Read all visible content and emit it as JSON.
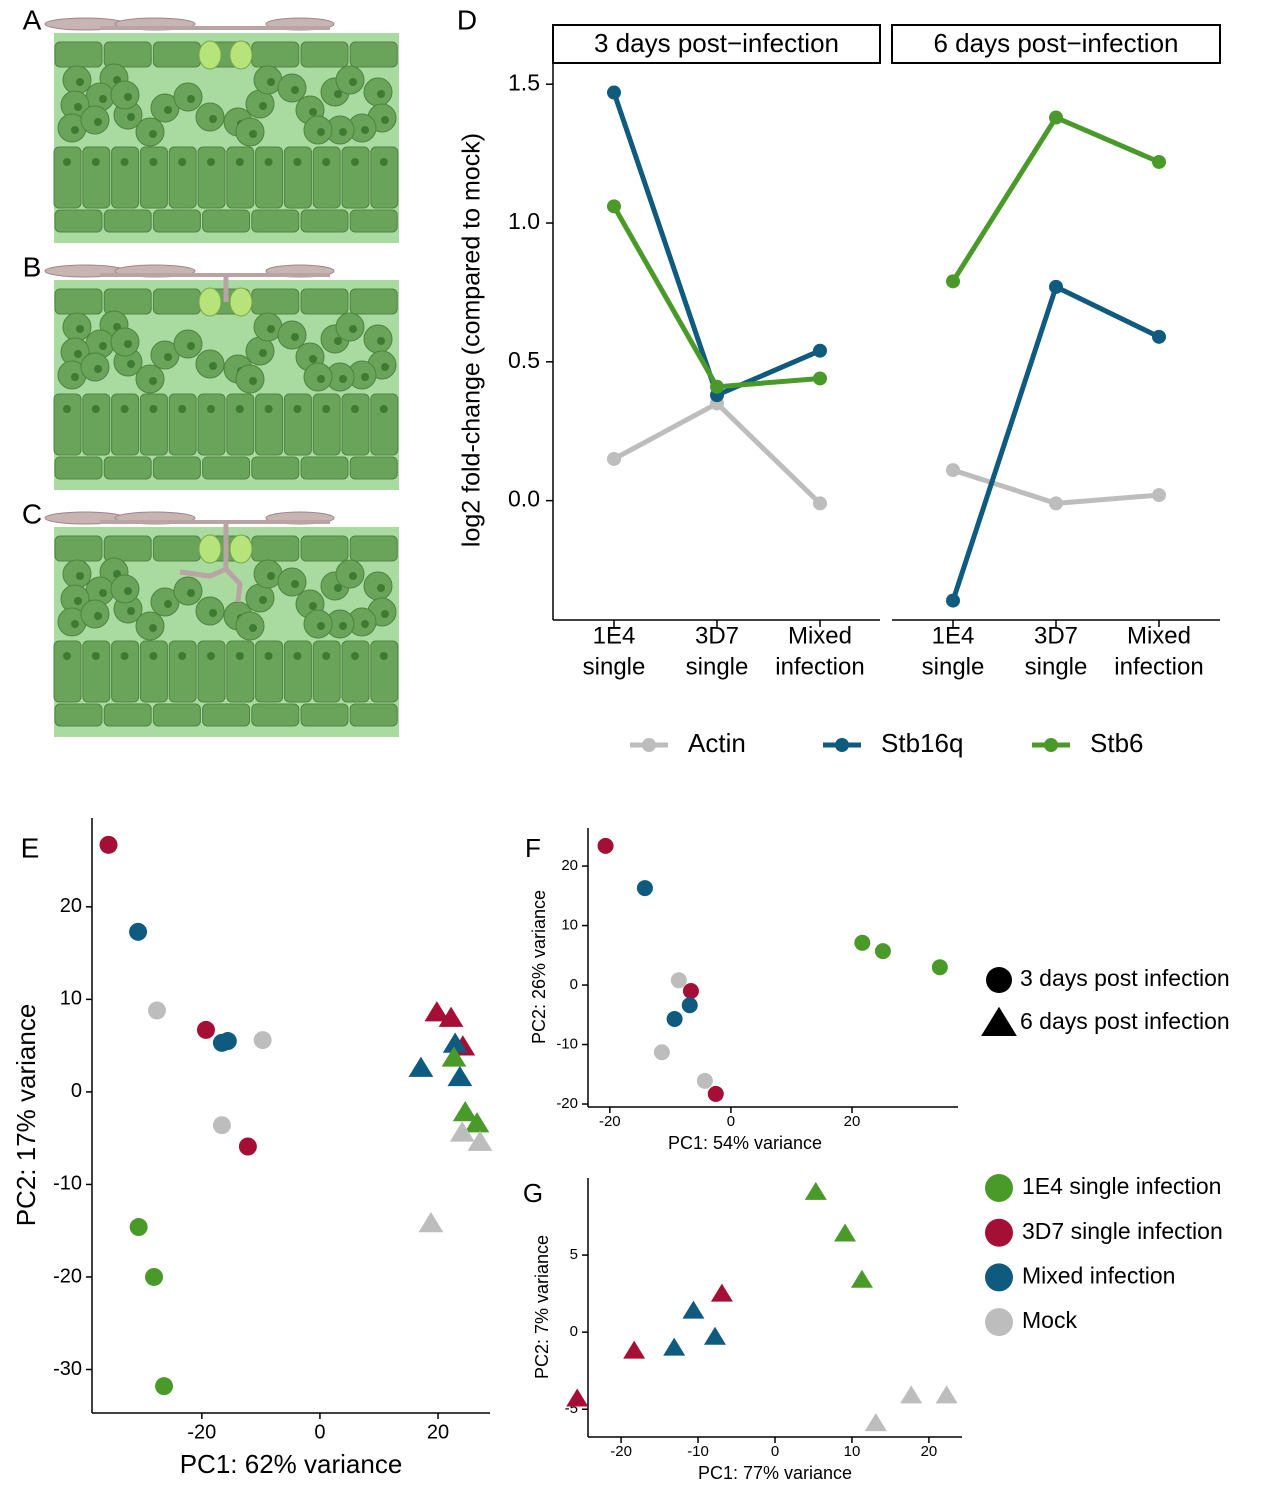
{
  "illustrations": [
    {
      "label": "A"
    },
    {
      "label": "B"
    },
    {
      "label": "C"
    }
  ],
  "chart_data": [
    {
      "type": "line",
      "title": "D",
      "ylabel": "log2 fold-change (compared to mock)",
      "ylim": [
        -0.43,
        1.58
      ],
      "yticks": [
        {
          "value": 0,
          "label": "0.0"
        },
        0.5,
        {
          "value": 1,
          "label": "1.0"
        },
        1.5
      ],
      "facets": [
        {
          "title": "3 days post−infection",
          "categories": [
            [
              "1E4",
              "single"
            ],
            [
              "3D7",
              "single"
            ],
            [
              "Mixed",
              "infection"
            ]
          ]
        },
        {
          "title": "6 days post−infection",
          "categories": [
            [
              "1E4",
              "single"
            ],
            [
              "3D7",
              "single"
            ],
            [
              "Mixed",
              "infection"
            ]
          ]
        }
      ],
      "series": [
        {
          "name": "Actin",
          "color": "#bdbdbd",
          "values": [
            [
              0.15,
              0.35,
              -0.01
            ],
            [
              0.11,
              -0.01,
              0.02
            ]
          ]
        },
        {
          "name": "Stb16q",
          "color": "#0f5a7f",
          "values": [
            [
              1.47,
              0.38,
              0.54
            ],
            [
              -0.36,
              0.77,
              0.59
            ]
          ]
        },
        {
          "name": "Stb6",
          "color": "#4a9a2a",
          "values": [
            [
              1.06,
              0.41,
              0.44
            ],
            [
              0.79,
              1.38,
              1.22
            ]
          ]
        }
      ]
    },
    {
      "type": "scatter",
      "title": "E",
      "xlabel": "PC1: 62% variance",
      "ylabel": "PC2: 17% variance",
      "xlim": [
        -38.6,
        28.8
      ],
      "ylim": [
        -34.7,
        29.6
      ],
      "xticks": [
        -20,
        0,
        20
      ],
      "yticks": [
        -30,
        -20,
        -10,
        0,
        10,
        20
      ],
      "series": [
        {
          "color": "#a50f35",
          "shape": "circle",
          "x": [
            -35.8,
            -19.3,
            -12.2
          ],
          "values": [
            26.7,
            6.7,
            -5.9
          ]
        },
        {
          "color": "#0f5a7f",
          "shape": "circle",
          "x": [
            -30.8,
            -16.6,
            -15.6
          ],
          "values": [
            17.3,
            5.3,
            5.5
          ]
        },
        {
          "color": "#bdbdbd",
          "shape": "circle",
          "x": [
            -27.6,
            -9.7,
            -16.6
          ],
          "values": [
            8.8,
            5.6,
            -3.6
          ]
        },
        {
          "color": "#4a9a2a",
          "shape": "circle",
          "x": [
            -30.7,
            -28.1,
            -26.4
          ],
          "values": [
            -14.6,
            -20.0,
            -31.8
          ]
        },
        {
          "color": "#a50f35",
          "shape": "triangle",
          "x": [
            19.8,
            22.2,
            24.2
          ],
          "values": [
            8.6,
            8.0,
            4.9
          ]
        },
        {
          "color": "#0f5a7f",
          "shape": "triangle",
          "x": [
            17.1,
            22.9,
            23.7
          ],
          "values": [
            2.6,
            5.2,
            1.6
          ]
        },
        {
          "color": "#4a9a2a",
          "shape": "triangle",
          "x": [
            22.7,
            24.6,
            26.6
          ],
          "values": [
            3.7,
            -2.2,
            -3.4
          ]
        },
        {
          "color": "#bdbdbd",
          "shape": "triangle",
          "x": [
            24.1,
            27.1,
            18.8
          ],
          "values": [
            -4.4,
            -5.4,
            -14.2
          ]
        }
      ]
    },
    {
      "type": "scatter",
      "title": "F",
      "xlabel": "PC1: 54% variance",
      "ylabel": "PC2: 26% variance",
      "xlim": [
        -23.6,
        37.5
      ],
      "ylim": [
        -20.5,
        26.4
      ],
      "xticks": [
        -20,
        0,
        20
      ],
      "yticks": [
        -20,
        -10,
        0,
        10,
        20
      ],
      "series": [
        {
          "color": "#a50f35",
          "shape": "circle",
          "x": [
            -20.7,
            -6.6,
            -2.5
          ],
          "values": [
            23.4,
            -1.0,
            -18.3
          ]
        },
        {
          "color": "#0f5a7f",
          "shape": "circle",
          "x": [
            -14.2,
            -6.8,
            -9.3
          ],
          "values": [
            16.3,
            -3.4,
            -5.7
          ]
        },
        {
          "color": "#4a9a2a",
          "shape": "circle",
          "x": [
            21.7,
            25.1,
            34.5
          ],
          "values": [
            7.1,
            5.7,
            3.0
          ]
        },
        {
          "color": "#bdbdbd",
          "shape": "circle",
          "x": [
            -8.6,
            -11.4,
            -4.3
          ],
          "values": [
            0.8,
            -11.3,
            -16.1
          ]
        }
      ]
    },
    {
      "type": "scatter",
      "title": "G",
      "xlabel": "PC1: 77% variance",
      "ylabel": "PC2: 7% variance",
      "xlim": [
        -24.3,
        24.3
      ],
      "ylim": [
        -6.8,
        10.0
      ],
      "xticks": [
        -20,
        -10,
        0,
        10,
        20
      ],
      "yticks": [
        -5,
        0,
        5
      ],
      "series": [
        {
          "color": "#4a9a2a",
          "shape": "triangle",
          "x": [
            5.3,
            9.1,
            11.3
          ],
          "values": [
            9.1,
            6.4,
            3.4
          ]
        },
        {
          "color": "#a50f35",
          "shape": "triangle",
          "x": [
            -6.9,
            -18.3,
            -25.7
          ],
          "values": [
            2.5,
            -1.2,
            -4.3
          ]
        },
        {
          "color": "#0f5a7f",
          "shape": "triangle",
          "x": [
            -10.6,
            -7.8,
            -13.1
          ],
          "values": [
            1.4,
            -0.3,
            -1.0
          ]
        },
        {
          "color": "#bdbdbd",
          "shape": "triangle",
          "x": [
            13.1,
            17.7,
            22.3
          ],
          "values": [
            -5.9,
            -4.1,
            -4.1
          ]
        }
      ]
    }
  ],
  "shared_legend": {
    "shapes": [
      {
        "name": "3 days post infection",
        "shape": "circle"
      },
      {
        "name": "6 days post infection",
        "shape": "triangle"
      }
    ],
    "colors": [
      {
        "name": "1E4 single infection",
        "color": "#4a9a2a"
      },
      {
        "name": "3D7 single infection",
        "color": "#a50f35"
      },
      {
        "name": "Mixed infection",
        "color": "#0f5a7f"
      },
      {
        "name": "Mock",
        "color": "#bdbdbd"
      }
    ]
  }
}
